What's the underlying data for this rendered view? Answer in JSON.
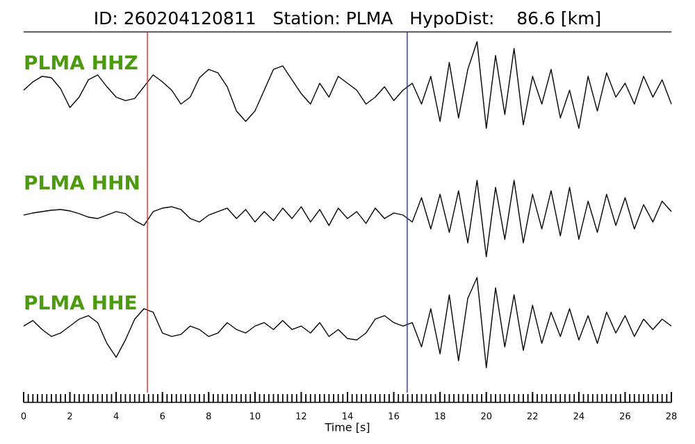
{
  "chart_data": {
    "type": "seismogram",
    "title": "ID: 260204120811   Station: PLMA   HypoDist:    86.6 [km]",
    "xlabel": "Time [s]",
    "xlim": [
      0,
      28
    ],
    "xticks": [
      0,
      2,
      4,
      6,
      8,
      10,
      12,
      14,
      16,
      18,
      20,
      22,
      24,
      26,
      28
    ],
    "xminor_interval": 0.2,
    "amplitude_lim": [
      -70,
      70
    ],
    "label_color": "#4c9a0e",
    "x": [
      0,
      0.4,
      0.8,
      1.2,
      1.6,
      2,
      2.4,
      2.8,
      3.2,
      3.6,
      4,
      4.4,
      4.8,
      5.2,
      5.6,
      6,
      6.4,
      6.8,
      7.2,
      7.6,
      8,
      8.4,
      8.8,
      9.2,
      9.6,
      10,
      10.4,
      10.8,
      11.2,
      11.6,
      12,
      12.4,
      12.8,
      13.2,
      13.6,
      14,
      14.4,
      14.8,
      15.2,
      15.6,
      16,
      16.4,
      16.8,
      17.2,
      17.6,
      18,
      18.4,
      18.8,
      19.2,
      19.6,
      20,
      20.4,
      20.8,
      21.2,
      21.6,
      22,
      22.4,
      22.8,
      23.2,
      23.6,
      24,
      24.4,
      24.8,
      25.2,
      25.6,
      26,
      26.4,
      26.8,
      27.2,
      27.6,
      28
    ],
    "series": [
      {
        "name": "PLMA HHZ",
        "color": "#000000",
        "values": [
          0,
          12,
          20,
          18,
          2,
          -25,
          -10,
          15,
          22,
          5,
          -10,
          -15,
          -12,
          5,
          22,
          12,
          0,
          -20,
          -10,
          18,
          30,
          25,
          5,
          -30,
          -45,
          -30,
          0,
          30,
          35,
          15,
          -5,
          -20,
          10,
          -10,
          20,
          10,
          0,
          -20,
          -10,
          5,
          -15,
          0,
          10,
          -20,
          20,
          -45,
          40,
          -40,
          30,
          70,
          -55,
          50,
          -35,
          60,
          -50,
          20,
          -20,
          30,
          -40,
          0,
          -55,
          20,
          -30,
          25,
          -10,
          10,
          -20,
          20,
          -10,
          15,
          -20
        ]
      },
      {
        "name": "PLMA HHN",
        "color": "#000000",
        "values": [
          0,
          3,
          5,
          7,
          8,
          6,
          2,
          -3,
          -5,
          0,
          5,
          2,
          -8,
          -15,
          5,
          10,
          12,
          8,
          -5,
          -10,
          0,
          5,
          10,
          -5,
          8,
          -10,
          5,
          -8,
          10,
          -5,
          12,
          -10,
          8,
          -15,
          10,
          -5,
          5,
          -12,
          10,
          -5,
          3,
          0,
          -10,
          25,
          -20,
          30,
          -25,
          35,
          -40,
          50,
          -60,
          40,
          -35,
          50,
          -40,
          30,
          -20,
          35,
          -30,
          40,
          -35,
          20,
          -25,
          30,
          -15,
          25,
          -20,
          15,
          -10,
          20,
          5
        ]
      },
      {
        "name": "PLMA HHE",
        "color": "#000000",
        "values": [
          0,
          8,
          -5,
          -15,
          -10,
          0,
          10,
          15,
          5,
          -25,
          -45,
          -20,
          10,
          25,
          20,
          -10,
          -15,
          -12,
          0,
          -5,
          -15,
          -10,
          5,
          -5,
          -10,
          0,
          5,
          -5,
          8,
          -5,
          0,
          -10,
          5,
          -15,
          -5,
          -18,
          -20,
          -10,
          10,
          15,
          5,
          0,
          5,
          -30,
          25,
          -40,
          45,
          -50,
          40,
          70,
          -60,
          55,
          -30,
          45,
          -35,
          30,
          -25,
          20,
          -15,
          25,
          -20,
          15,
          -25,
          20,
          -10,
          15,
          -15,
          10,
          -5,
          10,
          0
        ]
      }
    ],
    "picks": [
      {
        "x": 5.35,
        "color": "#e03030"
      },
      {
        "x": 16.58,
        "color": "#2a2ad8"
      }
    ]
  }
}
